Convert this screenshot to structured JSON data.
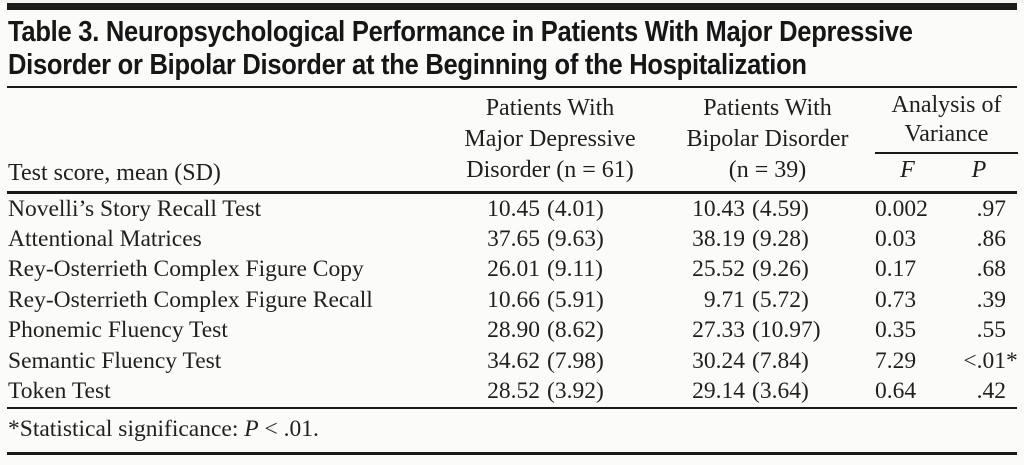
{
  "title": {
    "line1": "Table 3. Neuropsychological Performance in Patients With Major Depressive",
    "line2": "Disorder or Bipolar Disorder at the Beginning of the Hospitalization"
  },
  "columns": {
    "row_header": "Test score, mean (SD)",
    "mdd": [
      "Patients With",
      "Major Depressive",
      "Disorder (n = 61)"
    ],
    "bipolar": [
      "Patients With",
      "Bipolar Disorder",
      "(n = 39)"
    ],
    "anova": {
      "label_line1": "Analysis of",
      "label_line2": "Variance",
      "f": "F",
      "p": "P"
    }
  },
  "rows": [
    {
      "test": "Novelli’s Story Recall Test",
      "mdd_mean": "10.45",
      "mdd_sd": "(4.01)",
      "bp_mean": "10.43",
      "bp_sd": "(4.59)",
      "f": "0.002",
      "p": ".97",
      "p_suffix": ""
    },
    {
      "test": "Attentional Matrices",
      "mdd_mean": "37.65",
      "mdd_sd": "(9.63)",
      "bp_mean": "38.19",
      "bp_sd": "(9.28)",
      "f": "0.03",
      "p": ".86",
      "p_suffix": ""
    },
    {
      "test": "Rey-Osterrieth Complex Figure Copy",
      "mdd_mean": "26.01",
      "mdd_sd": "(9.11)",
      "bp_mean": "25.52",
      "bp_sd": "(9.26)",
      "f": "0.17",
      "p": ".68",
      "p_suffix": ""
    },
    {
      "test": "Rey-Osterrieth Complex Figure Recall",
      "mdd_mean": "10.66",
      "mdd_sd": "(5.91)",
      "bp_mean": "9.71",
      "bp_sd": "(5.72)",
      "f": "0.73",
      "p": ".39",
      "p_suffix": ""
    },
    {
      "test": "Phonemic Fluency Test",
      "mdd_mean": "28.90",
      "mdd_sd": "(8.62)",
      "bp_mean": "27.33",
      "bp_sd": "(10.97)",
      "f": "0.35",
      "p": ".55",
      "p_suffix": ""
    },
    {
      "test": "Semantic Fluency Test",
      "mdd_mean": "34.62",
      "mdd_sd": "(7.98)",
      "bp_mean": "30.24",
      "bp_sd": "(7.84)",
      "f": "7.29",
      "p": "<.01",
      "p_suffix": "*"
    },
    {
      "test": "Token Test",
      "mdd_mean": "28.52",
      "mdd_sd": "(3.92)",
      "bp_mean": "29.14",
      "bp_sd": "(3.64)",
      "f": "0.64",
      "p": ".42",
      "p_suffix": ""
    }
  ],
  "footnote": {
    "prefix": "*Statistical significance: ",
    "p": "P",
    "suffix": " < .01."
  }
}
